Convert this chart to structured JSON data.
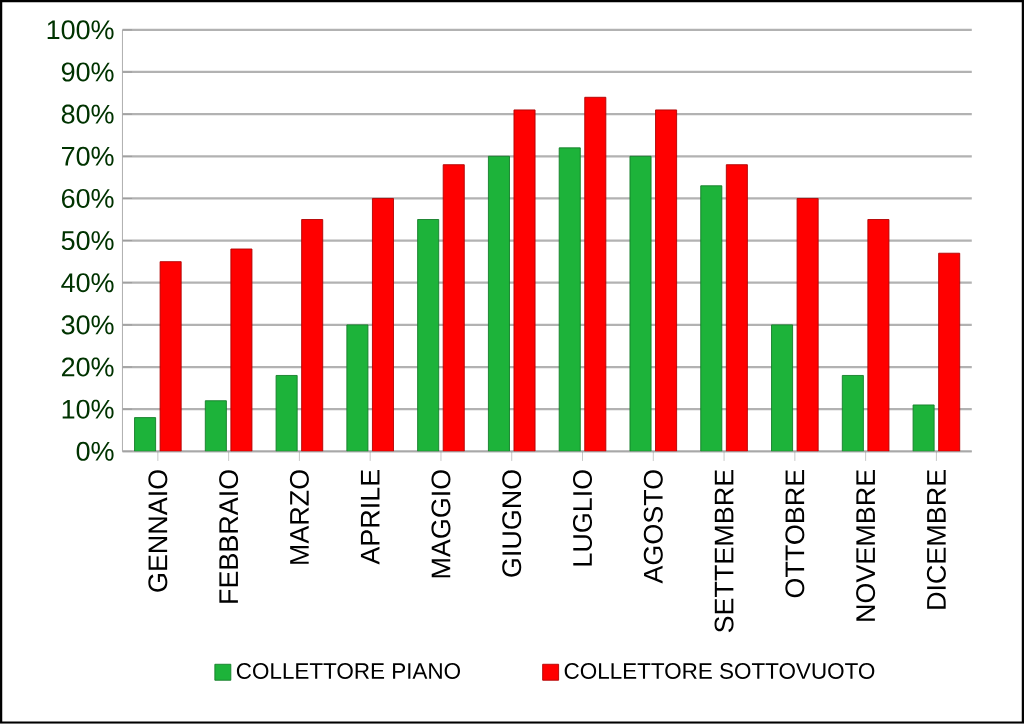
{
  "chart_data": {
    "type": "bar",
    "categories": [
      "GENNAIO",
      "FEBBRAIO",
      "MARZO",
      "APRILE",
      "MAGGIO",
      "GIUGNO",
      "LUGLIO",
      "AGOSTO",
      "SETTEMBRE",
      "OTTOBRE",
      "NOVEMBRE",
      "DICEMBRE"
    ],
    "series": [
      {
        "name": "COLLETTORE PIANO",
        "color": "#1db33a",
        "values": [
          8,
          12,
          18,
          30,
          55,
          70,
          72,
          70,
          63,
          30,
          18,
          11
        ]
      },
      {
        "name": "COLLETTORE SOTTOVUOTO",
        "color": "#ff0000",
        "values": [
          45,
          48,
          55,
          60,
          68,
          81,
          84,
          81,
          68,
          60,
          55,
          47
        ]
      }
    ],
    "ylim": [
      0,
      100
    ],
    "yticks": [
      {
        "value": 0,
        "label": "0%"
      },
      {
        "value": 10,
        "label": "10%"
      },
      {
        "value": 20,
        "label": "20%"
      },
      {
        "value": 30,
        "label": "30%"
      },
      {
        "value": 40,
        "label": "40%"
      },
      {
        "value": 50,
        "label": "50%"
      },
      {
        "value": 60,
        "label": "60%"
      },
      {
        "value": 70,
        "label": "70%"
      },
      {
        "value": 80,
        "label": "80%"
      },
      {
        "value": 90,
        "label": "90%"
      },
      {
        "value": 100,
        "label": "100%"
      }
    ],
    "grid": "y",
    "legend": "bottom"
  }
}
